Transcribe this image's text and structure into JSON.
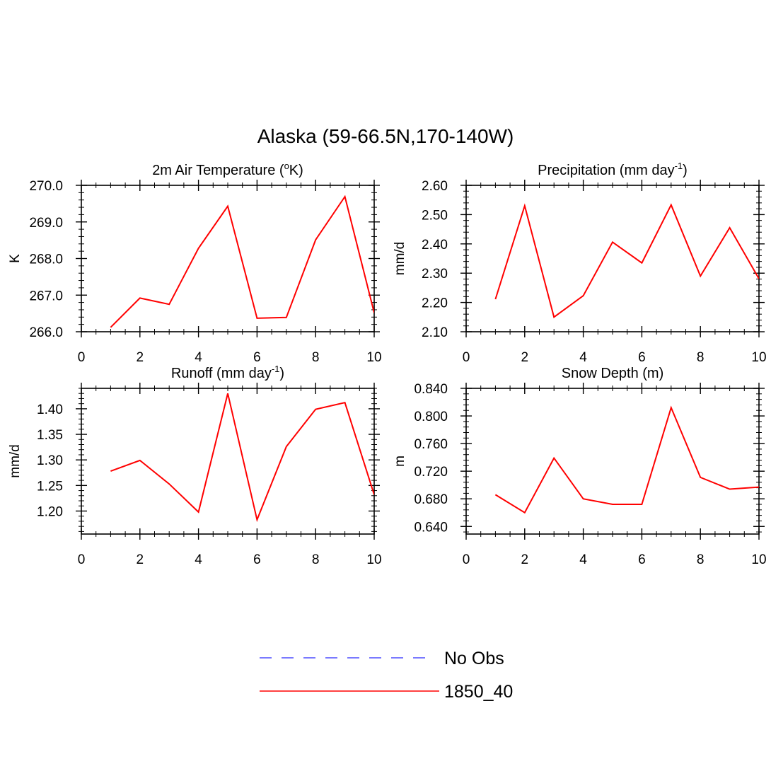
{
  "figure_title": "Alaska (59-66.5N,170-140W)",
  "legend": {
    "entries": [
      {
        "label": "No Obs",
        "color": "#4f4fff",
        "dashed": true
      },
      {
        "label": "1850_40",
        "color": "#ff0000",
        "dashed": false
      }
    ]
  },
  "chart_data": [
    {
      "type": "line",
      "title": "2m Air Temperature (",
      "title_sup": "o",
      "title_tail": "K)",
      "ylabel": "K",
      "xlim": [
        0,
        10
      ],
      "ylim": [
        266.0,
        270.0
      ],
      "xticks": [
        "0",
        "2",
        "4",
        "6",
        "8",
        "10"
      ],
      "yticks": [
        "266.0",
        "267.0",
        "268.0",
        "269.0",
        "270.0"
      ],
      "series": [
        {
          "name": "1850_40",
          "color": "#ff0000",
          "x": [
            1,
            2,
            3,
            4,
            5,
            6,
            7,
            8,
            9,
            10
          ],
          "values": [
            266.12,
            266.92,
            266.75,
            268.28,
            269.43,
            266.37,
            266.39,
            268.51,
            269.69,
            266.52
          ]
        }
      ]
    },
    {
      "type": "line",
      "title": "Precipitation (mm day",
      "title_sup": "-1",
      "title_tail": ")",
      "ylabel": "mm/d",
      "xlim": [
        0,
        10
      ],
      "ylim": [
        2.1,
        2.6
      ],
      "xticks": [
        "0",
        "2",
        "4",
        "6",
        "8",
        "10"
      ],
      "yticks": [
        "2.10",
        "2.20",
        "2.30",
        "2.40",
        "2.50",
        "2.60"
      ],
      "series": [
        {
          "name": "1850_40",
          "color": "#ff0000",
          "x": [
            1,
            2,
            3,
            4,
            5,
            6,
            7,
            8,
            9,
            10
          ],
          "values": [
            2.211,
            2.53,
            2.15,
            2.223,
            2.406,
            2.335,
            2.533,
            2.29,
            2.455,
            2.281
          ]
        }
      ]
    },
    {
      "type": "line",
      "title": "Runoff (mm day",
      "title_sup": "-1",
      "title_tail": ")",
      "ylabel": "mm/d",
      "xlim": [
        0,
        10
      ],
      "ylim": [
        1.155,
        1.44
      ],
      "xticks": [
        "0",
        "2",
        "4",
        "6",
        "8",
        "10"
      ],
      "yticks": [
        "1.20",
        "1.25",
        "1.30",
        "1.35",
        "1.40"
      ],
      "series": [
        {
          "name": "1850_40",
          "color": "#ff0000",
          "x": [
            1,
            2,
            3,
            4,
            5,
            6,
            7,
            8,
            9,
            10
          ],
          "values": [
            1.278,
            1.299,
            1.253,
            1.198,
            1.43,
            1.183,
            1.326,
            1.399,
            1.412,
            1.232
          ]
        }
      ]
    },
    {
      "type": "line",
      "title": "Snow Depth (m)",
      "title_sup": "",
      "title_tail": "",
      "ylabel": "m",
      "xlim": [
        0,
        10
      ],
      "ylim": [
        0.629,
        0.84
      ],
      "xticks": [
        "0",
        "2",
        "4",
        "6",
        "8",
        "10"
      ],
      "yticks": [
        "0.640",
        "0.680",
        "0.720",
        "0.760",
        "0.800",
        "0.840"
      ],
      "series": [
        {
          "name": "1850_40",
          "color": "#ff0000",
          "x": [
            1,
            2,
            3,
            4,
            5,
            6,
            7,
            8,
            9,
            10
          ],
          "values": [
            0.686,
            0.66,
            0.739,
            0.68,
            0.672,
            0.672,
            0.812,
            0.711,
            0.694,
            0.697
          ]
        }
      ]
    }
  ]
}
